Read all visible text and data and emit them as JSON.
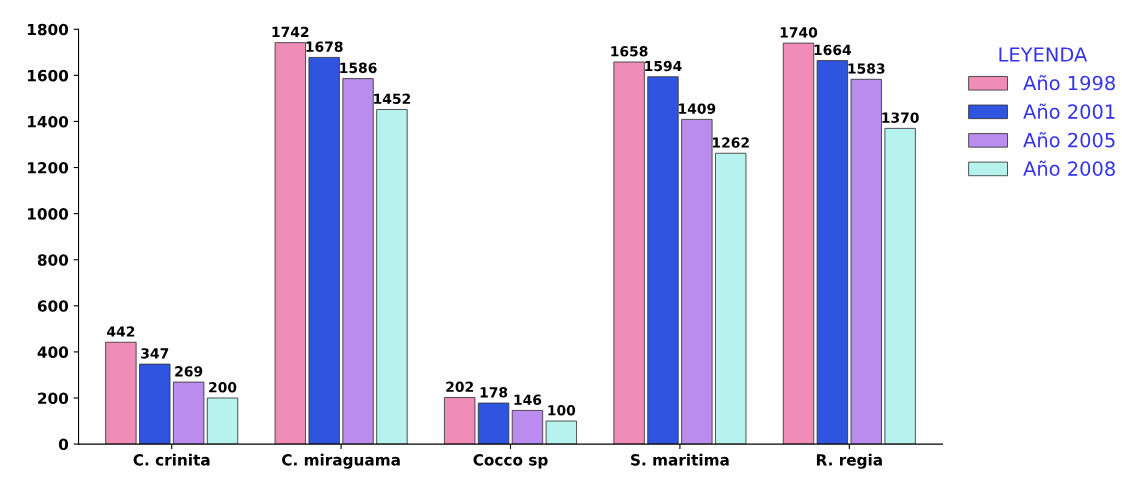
{
  "chart_data": {
    "type": "bar",
    "categories": [
      "C. crinita",
      "C. miraguama",
      "Cocco sp",
      "S. maritima",
      "R. regia"
    ],
    "series": [
      {
        "name": "Año 1998",
        "color": "#f08cb8",
        "values": [
          442,
          1742,
          202,
          1658,
          1740
        ]
      },
      {
        "name": "Año 2001",
        "color": "#2f55e0",
        "values": [
          347,
          1678,
          178,
          1594,
          1664
        ]
      },
      {
        "name": "Año 2005",
        "color": "#b98ced",
        "values": [
          269,
          1586,
          146,
          1409,
          1583
        ]
      },
      {
        "name": "Año 2008",
        "color": "#b6f2ee",
        "values": [
          200,
          1452,
          100,
          1262,
          1370
        ]
      }
    ],
    "legend_title": "LEYENDA",
    "legend": "right",
    "ylim": [
      0,
      1800
    ],
    "yticks": [
      0,
      200,
      400,
      600,
      800,
      1000,
      1200,
      1400,
      1600,
      1800
    ],
    "grid": false,
    "data_labels": true
  }
}
